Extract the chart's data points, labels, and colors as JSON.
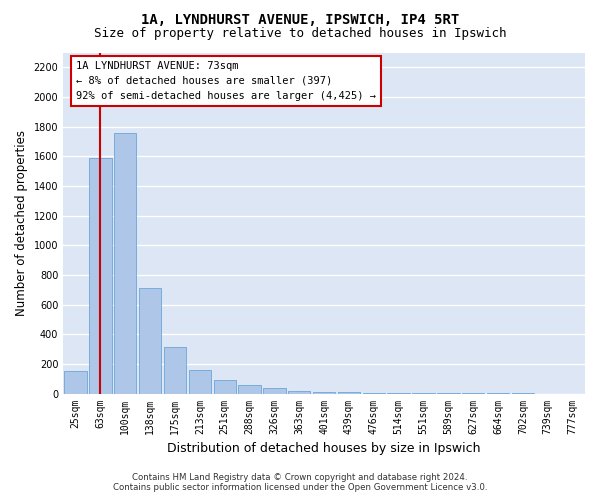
{
  "title": "1A, LYNDHURST AVENUE, IPSWICH, IP4 5RT",
  "subtitle": "Size of property relative to detached houses in Ipswich",
  "xlabel": "Distribution of detached houses by size in Ipswich",
  "ylabel": "Number of detached properties",
  "categories": [
    "25sqm",
    "63sqm",
    "100sqm",
    "138sqm",
    "175sqm",
    "213sqm",
    "251sqm",
    "288sqm",
    "326sqm",
    "363sqm",
    "401sqm",
    "439sqm",
    "476sqm",
    "514sqm",
    "551sqm",
    "589sqm",
    "627sqm",
    "664sqm",
    "702sqm",
    "739sqm",
    "777sqm"
  ],
  "values": [
    155,
    1590,
    1760,
    710,
    315,
    160,
    90,
    55,
    35,
    20,
    10,
    8,
    5,
    3,
    2,
    2,
    1,
    1,
    1,
    0,
    0
  ],
  "bar_color": "#aec6e8",
  "bar_edge_color": "#5b9bd5",
  "background_color": "#dce6f5",
  "grid_color": "#ffffff",
  "vline_x": 1,
  "vline_color": "#cc0000",
  "annotation_title": "1A LYNDHURST AVENUE: 73sqm",
  "annotation_line1": "← 8% of detached houses are smaller (397)",
  "annotation_line2": "92% of semi-detached houses are larger (4,425) →",
  "annotation_box_color": "#ffffff",
  "annotation_box_edge": "#cc0000",
  "ylim": [
    0,
    2300
  ],
  "yticks": [
    0,
    200,
    400,
    600,
    800,
    1000,
    1200,
    1400,
    1600,
    1800,
    2000,
    2200
  ],
  "footer1": "Contains HM Land Registry data © Crown copyright and database right 2024.",
  "footer2": "Contains public sector information licensed under the Open Government Licence v3.0.",
  "title_fontsize": 10,
  "subtitle_fontsize": 9,
  "tick_fontsize": 7,
  "ylabel_fontsize": 8.5,
  "xlabel_fontsize": 9
}
